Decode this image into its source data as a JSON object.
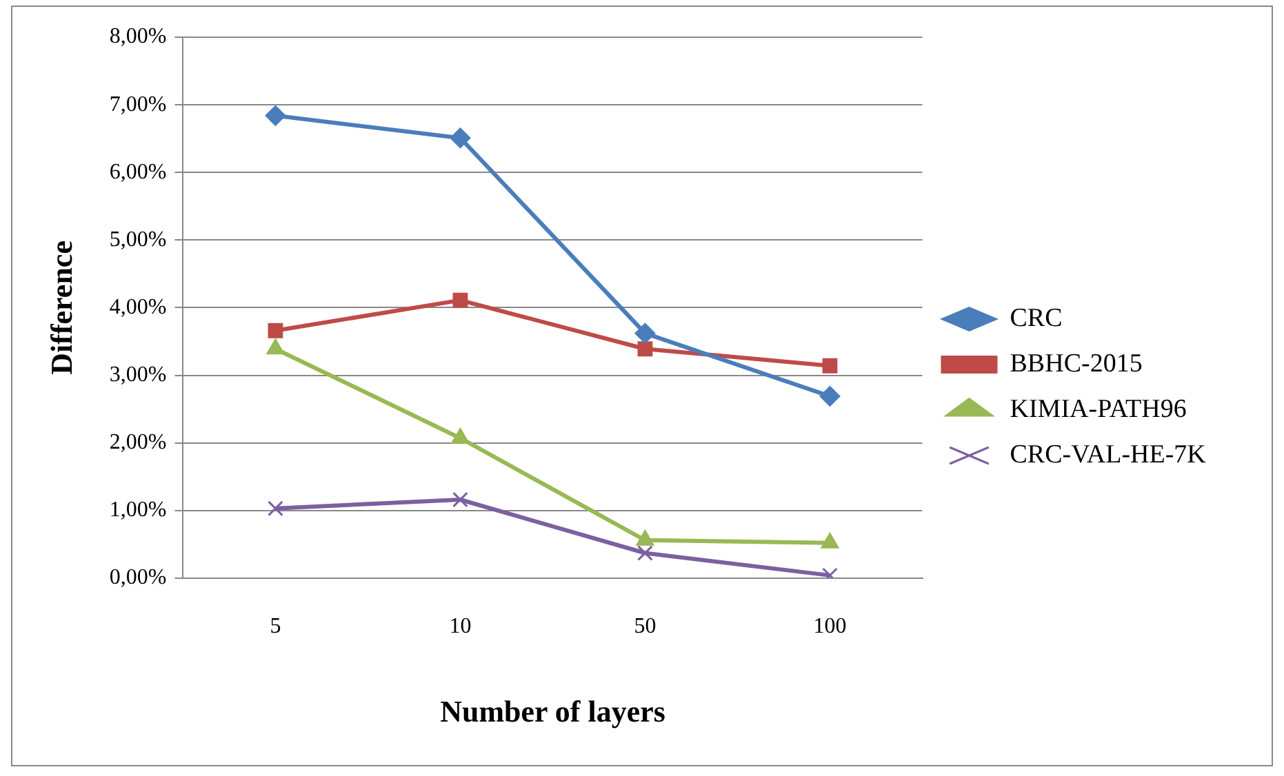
{
  "chart_data": {
    "type": "line",
    "xlabel": "Number of layers",
    "ylabel": "Difference",
    "categories": [
      "5",
      "10",
      "50",
      "100"
    ],
    "series": [
      {
        "name": "CRC",
        "color": "#4a7ebb",
        "marker": "diamond",
        "values": [
          6.84,
          6.51,
          3.62,
          2.69
        ]
      },
      {
        "name": "BBHC-2015",
        "color": "#be4b48",
        "marker": "square",
        "values": [
          3.66,
          4.11,
          3.39,
          3.14
        ]
      },
      {
        "name": "KIMIA-PATH96",
        "color": "#98b954",
        "marker": "triangle",
        "values": [
          3.39,
          2.07,
          0.56,
          0.52
        ]
      },
      {
        "name": "CRC-VAL-HE-7K",
        "color": "#7d60a0",
        "marker": "cross",
        "values": [
          1.03,
          1.16,
          0.37,
          0.04
        ]
      }
    ],
    "ylim": [
      0,
      8
    ],
    "yticks": [
      {
        "value": 0,
        "label": "0,00%"
      },
      {
        "value": 1,
        "label": "1,00%"
      },
      {
        "value": 2,
        "label": "2,00%"
      },
      {
        "value": 3,
        "label": "3,00%"
      },
      {
        "value": 4,
        "label": "4,00%"
      },
      {
        "value": 5,
        "label": "5,00%"
      },
      {
        "value": 6,
        "label": "6,00%"
      },
      {
        "value": 7,
        "label": "7,00%"
      },
      {
        "value": 8,
        "label": "8,00%"
      }
    ],
    "grid": "y",
    "legend": "right",
    "line_style": "solid"
  }
}
